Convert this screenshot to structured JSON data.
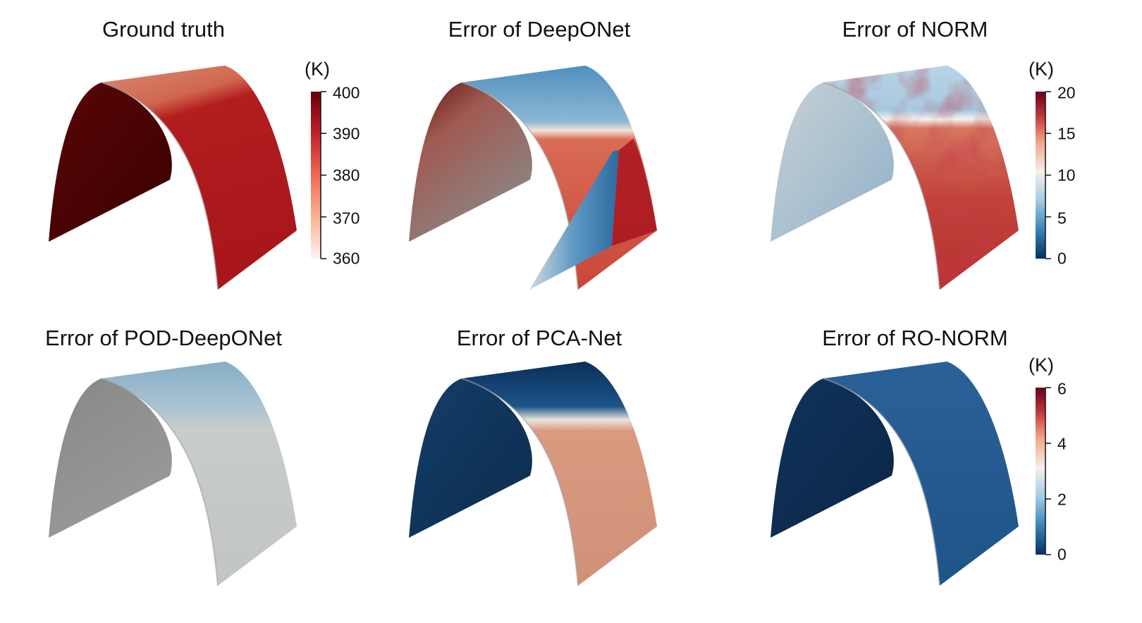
{
  "panels": [
    {
      "title": "Ground truth",
      "map": "ground_truth"
    },
    {
      "title": "Error of DeepONet",
      "map": "deeponet"
    },
    {
      "title": "Error of NORM",
      "map": "norm"
    },
    {
      "title": "Error of POD-DeepONet",
      "map": "pod_deeponet"
    },
    {
      "title": "Error of PCA-Net",
      "map": "pca_net"
    },
    {
      "title": "Error of RO-NORM",
      "map": "ro_norm"
    }
  ],
  "colorbars": [
    {
      "unit": "(K)",
      "range": [
        360,
        400
      ],
      "ticks": [
        "400",
        "390",
        "380",
        "370",
        "360"
      ],
      "tick_values": [
        400,
        390,
        380,
        370,
        360
      ],
      "colormap": "reds"
    },
    {
      "unit": "(K)",
      "range": [
        0,
        20
      ],
      "ticks": [
        "20",
        "15",
        "10",
        "5",
        "0"
      ],
      "tick_values": [
        20,
        15,
        10,
        5,
        0
      ],
      "colormap": "rdbu"
    },
    {
      "unit": "(K)",
      "range": [
        0,
        6
      ],
      "ticks": [
        "6",
        "4",
        "2",
        "0"
      ],
      "tick_values": [
        6,
        4,
        2,
        0
      ],
      "colormap": "rdbu"
    }
  ],
  "colors": {
    "gt_dark": "#3a0000",
    "gt_mid": "#a8151b",
    "gt_light": "#d97a66",
    "red": "#b8231f",
    "salmon": "#d5937a",
    "blue": "#2f6da0",
    "navy": "#08305a",
    "gray": "#c2c6c6"
  }
}
